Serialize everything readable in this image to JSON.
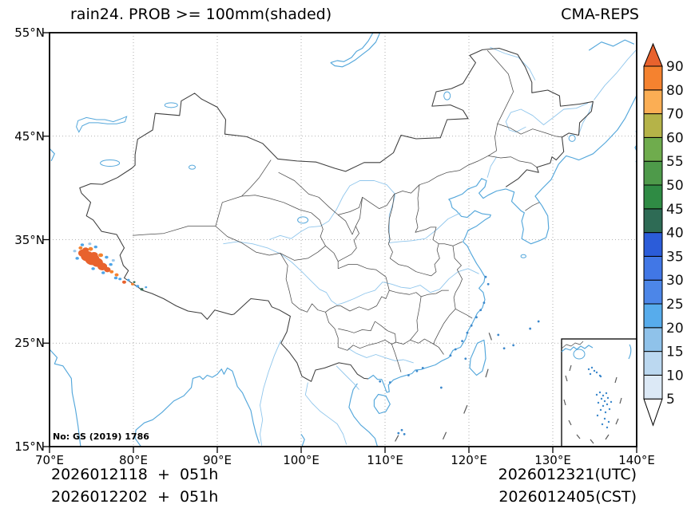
{
  "header": {
    "title": "rain24. PROB >= 100mm(shaded)",
    "model_label": "CMA-REPS"
  },
  "axes": {
    "x_tick_labels": [
      "70°E",
      "80°E",
      "90°E",
      "100°E",
      "110°E",
      "120°E",
      "130°E",
      "140°E"
    ],
    "y_tick_labels": [
      "55°N",
      "45°N",
      "35°N",
      "25°N",
      "15°N"
    ]
  },
  "map": {
    "license_note": "No: GS (2019) 1786",
    "inset_label": "south-china-sea-inset"
  },
  "colorbar": {
    "values": [
      5,
      10,
      15,
      20,
      25,
      30,
      35,
      40,
      45,
      50,
      55,
      60,
      70,
      80,
      90
    ],
    "segment_colors": [
      "#dce9f6",
      "#bbd8f0",
      "#8fc2ea",
      "#57acec",
      "#4c86e8",
      "#4177e6",
      "#2b5cd9",
      "#2e6b55",
      "#2f8b44",
      "#4e9a4a",
      "#6fac4d",
      "#b5b348",
      "#fbae54",
      "#f5822f"
    ],
    "under_color": "#ffffff",
    "over_color": "#e8622d"
  },
  "shaded_feature": {
    "variable": "24h rain probability >= 100mm",
    "approx_region": "73–81.5°E, 30.3–34.7°N",
    "peak_band": ">90"
  },
  "footer": {
    "run_line1": "2026012118  +  051h",
    "run_line2": "2026012202  +  051h",
    "valid_line1": "2026012321(UTC)",
    "valid_line2": "2026012405(CST)"
  }
}
